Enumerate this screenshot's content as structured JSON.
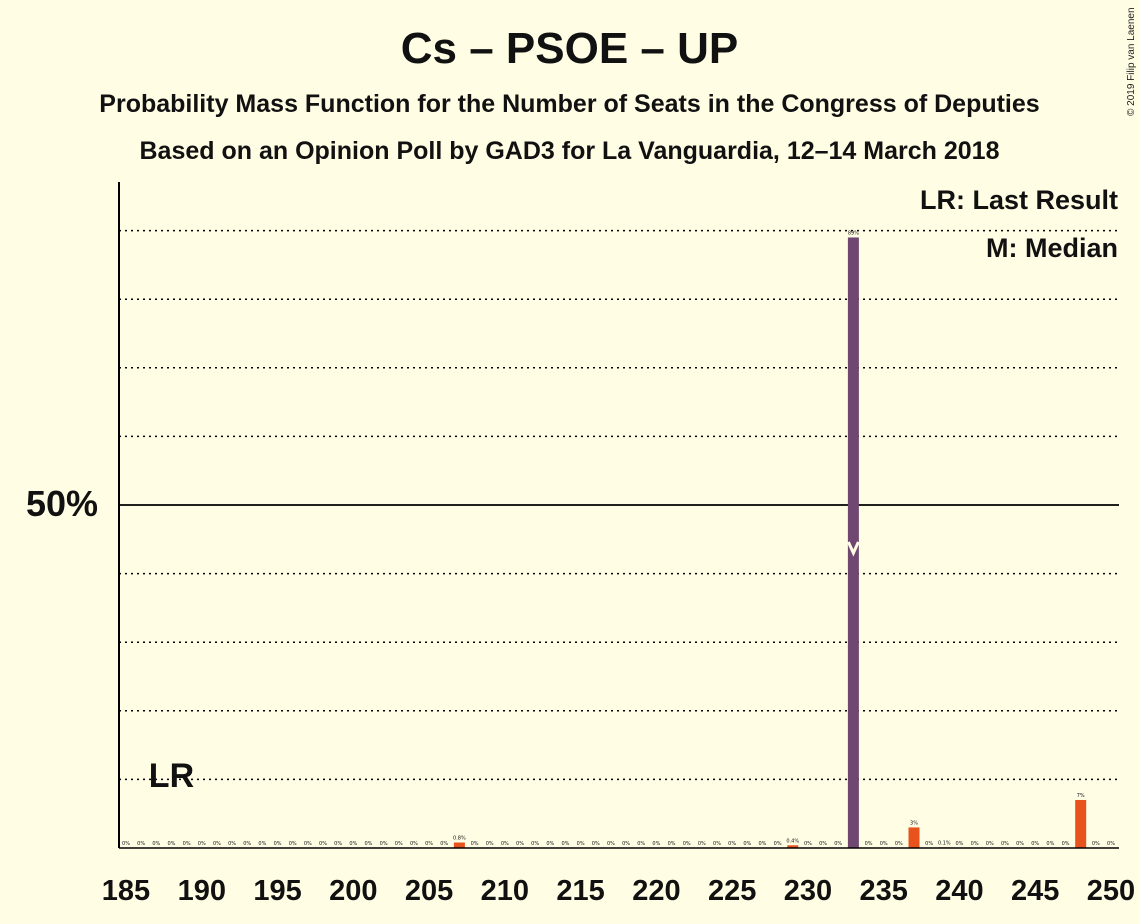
{
  "title": "Cs – PSOE – UP",
  "subtitle": "Probability Mass Function for the Number of Seats in the Congress of Deputies",
  "subtitle2": "Based on an Opinion Poll by GAD3 for La Vanguardia, 12–14 March 2018",
  "copyright": "© 2019 Filip van Laenen",
  "legend": {
    "last_result": "LR: Last Result",
    "median": "M: Median"
  },
  "markers": {
    "last_result_label": "LR",
    "last_result_seat": 188,
    "median_seat": 233
  },
  "y_axis_label": "50%",
  "colors": {
    "background": "#FFFDE4",
    "median_bar": "#6F4771",
    "other_bar": "#E8521D",
    "grid": "#000000"
  },
  "chart_data": {
    "type": "bar",
    "xlabel": "",
    "ylabel": "",
    "xlim": [
      185,
      250
    ],
    "ylim": [
      0,
      100
    ],
    "x_ticks": [
      185,
      190,
      195,
      200,
      205,
      210,
      215,
      220,
      225,
      230,
      235,
      240,
      245,
      250
    ],
    "gridlines_y": [
      10,
      20,
      30,
      40,
      50,
      60,
      70,
      80,
      90
    ],
    "grid": true,
    "legend_position": "top-right",
    "bars": [
      {
        "seat": 185,
        "value": 0,
        "label": "0%"
      },
      {
        "seat": 186,
        "value": 0,
        "label": "0%"
      },
      {
        "seat": 187,
        "value": 0,
        "label": "0%"
      },
      {
        "seat": 188,
        "value": 0,
        "label": "0%"
      },
      {
        "seat": 189,
        "value": 0,
        "label": "0%"
      },
      {
        "seat": 190,
        "value": 0,
        "label": "0%"
      },
      {
        "seat": 191,
        "value": 0,
        "label": "0%"
      },
      {
        "seat": 192,
        "value": 0,
        "label": "0%"
      },
      {
        "seat": 193,
        "value": 0,
        "label": "0%"
      },
      {
        "seat": 194,
        "value": 0,
        "label": "0%"
      },
      {
        "seat": 195,
        "value": 0,
        "label": "0%"
      },
      {
        "seat": 196,
        "value": 0,
        "label": "0%"
      },
      {
        "seat": 197,
        "value": 0,
        "label": "0%"
      },
      {
        "seat": 198,
        "value": 0,
        "label": "0%"
      },
      {
        "seat": 199,
        "value": 0,
        "label": "0%"
      },
      {
        "seat": 200,
        "value": 0,
        "label": "0%"
      },
      {
        "seat": 201,
        "value": 0,
        "label": "0%"
      },
      {
        "seat": 202,
        "value": 0,
        "label": "0%"
      },
      {
        "seat": 203,
        "value": 0,
        "label": "0%"
      },
      {
        "seat": 204,
        "value": 0,
        "label": "0%"
      },
      {
        "seat": 205,
        "value": 0,
        "label": "0%"
      },
      {
        "seat": 206,
        "value": 0,
        "label": "0%"
      },
      {
        "seat": 207,
        "value": 0.8,
        "label": "0.8%"
      },
      {
        "seat": 208,
        "value": 0,
        "label": "0%"
      },
      {
        "seat": 209,
        "value": 0,
        "label": "0%"
      },
      {
        "seat": 210,
        "value": 0,
        "label": "0%"
      },
      {
        "seat": 211,
        "value": 0,
        "label": "0%"
      },
      {
        "seat": 212,
        "value": 0,
        "label": "0%"
      },
      {
        "seat": 213,
        "value": 0,
        "label": "0%"
      },
      {
        "seat": 214,
        "value": 0,
        "label": "0%"
      },
      {
        "seat": 215,
        "value": 0,
        "label": "0%"
      },
      {
        "seat": 216,
        "value": 0,
        "label": "0%"
      },
      {
        "seat": 217,
        "value": 0,
        "label": "0%"
      },
      {
        "seat": 218,
        "value": 0,
        "label": "0%"
      },
      {
        "seat": 219,
        "value": 0,
        "label": "0%"
      },
      {
        "seat": 220,
        "value": 0,
        "label": "0%"
      },
      {
        "seat": 221,
        "value": 0,
        "label": "0%"
      },
      {
        "seat": 222,
        "value": 0,
        "label": "0%"
      },
      {
        "seat": 223,
        "value": 0,
        "label": "0%"
      },
      {
        "seat": 224,
        "value": 0,
        "label": "0%"
      },
      {
        "seat": 225,
        "value": 0,
        "label": "0%"
      },
      {
        "seat": 226,
        "value": 0,
        "label": "0%"
      },
      {
        "seat": 227,
        "value": 0,
        "label": "0%"
      },
      {
        "seat": 228,
        "value": 0,
        "label": "0%"
      },
      {
        "seat": 229,
        "value": 0.4,
        "label": "0.4%"
      },
      {
        "seat": 230,
        "value": 0,
        "label": "0%"
      },
      {
        "seat": 231,
        "value": 0,
        "label": "0%"
      },
      {
        "seat": 232,
        "value": 0,
        "label": "0%"
      },
      {
        "seat": 233,
        "value": 89,
        "label": "89%"
      },
      {
        "seat": 234,
        "value": 0,
        "label": "0%"
      },
      {
        "seat": 235,
        "value": 0,
        "label": "0%"
      },
      {
        "seat": 236,
        "value": 0,
        "label": "0%"
      },
      {
        "seat": 237,
        "value": 3,
        "label": "3%"
      },
      {
        "seat": 238,
        "value": 0,
        "label": "0%"
      },
      {
        "seat": 239,
        "value": 0.1,
        "label": "0.1%"
      },
      {
        "seat": 240,
        "value": 0,
        "label": "0%"
      },
      {
        "seat": 241,
        "value": 0,
        "label": "0%"
      },
      {
        "seat": 242,
        "value": 0,
        "label": "0%"
      },
      {
        "seat": 243,
        "value": 0,
        "label": "0%"
      },
      {
        "seat": 244,
        "value": 0,
        "label": "0%"
      },
      {
        "seat": 245,
        "value": 0,
        "label": "0%"
      },
      {
        "seat": 246,
        "value": 0,
        "label": "0%"
      },
      {
        "seat": 247,
        "value": 0,
        "label": "0%"
      },
      {
        "seat": 248,
        "value": 7,
        "label": "7%"
      },
      {
        "seat": 249,
        "value": 0,
        "label": "0%"
      },
      {
        "seat": 250,
        "value": 0,
        "label": "0%"
      }
    ]
  }
}
